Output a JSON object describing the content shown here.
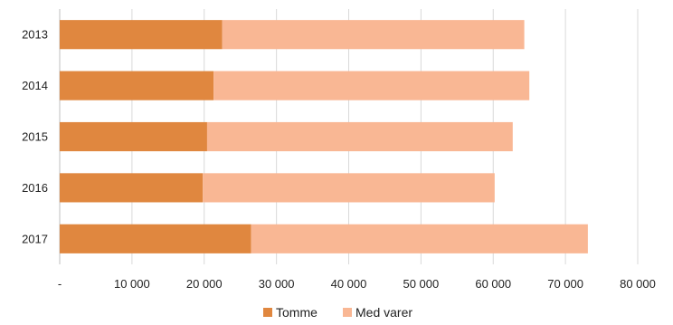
{
  "chart_data": {
    "type": "bar",
    "orientation": "horizontal",
    "stacked": true,
    "categories": [
      "2013",
      "2014",
      "2015",
      "2016",
      "2017"
    ],
    "series": [
      {
        "name": "Tomme",
        "values": [
          22500,
          21300,
          20400,
          19800,
          26500
        ],
        "color": "#e0873f"
      },
      {
        "name": "Med varer",
        "values": [
          41800,
          43700,
          42300,
          40400,
          46600
        ],
        "color": "#f9b794"
      }
    ],
    "xlim": [
      0,
      80000
    ],
    "x_ticks": [
      0,
      10000,
      20000,
      30000,
      40000,
      50000,
      60000,
      70000,
      80000
    ],
    "x_tick_labels": [
      "-",
      "10 000",
      "20 000",
      "30 000",
      "40 000",
      "50 000",
      "60 000",
      "70 000",
      "80 000"
    ],
    "grid": "vertical",
    "gridline_color": "#d9d9d9",
    "legend_position": "bottom",
    "title": "",
    "xlabel": "",
    "ylabel": ""
  }
}
